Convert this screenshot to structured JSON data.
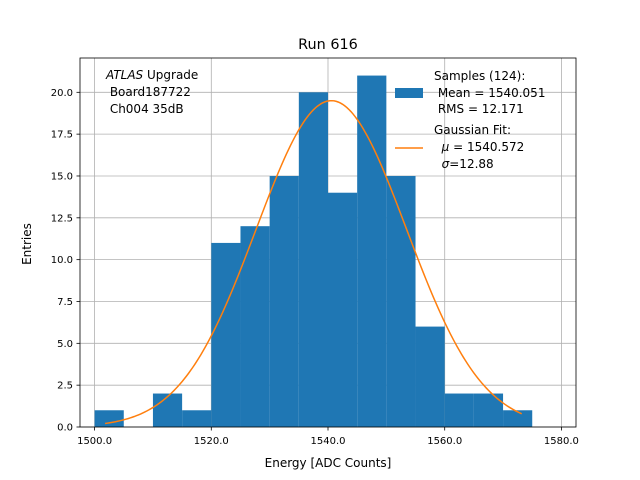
{
  "chart_data": {
    "type": "bar",
    "title": "Run 616",
    "xlabel": "Energy [ADC Counts]",
    "ylabel": "Entries",
    "xlim": [
      1497.5,
      1582.5
    ],
    "ylim": [
      0,
      22.05
    ],
    "grid": true,
    "x_ticks": [
      1500.0,
      1520.0,
      1540.0,
      1560.0,
      1580.0
    ],
    "x_tick_labels": [
      "1500.0",
      "1520.0",
      "1540.0",
      "1560.0",
      "1580.0"
    ],
    "y_ticks": [
      0.0,
      2.5,
      5.0,
      7.5,
      10.0,
      12.5,
      15.0,
      17.5,
      20.0
    ],
    "y_tick_labels": [
      "0.0",
      "2.5",
      "5.0",
      "7.5",
      "10.0",
      "12.5",
      "15.0",
      "17.5",
      "20.0"
    ],
    "bin_edges": [
      1500,
      1505,
      1510,
      1515,
      1520,
      1525,
      1530,
      1535,
      1540,
      1545,
      1550,
      1555,
      1560,
      1565,
      1570,
      1575
    ],
    "counts": [
      1,
      0,
      2,
      1,
      11,
      12,
      15,
      20,
      14,
      21,
      15,
      6,
      2,
      2,
      1
    ],
    "bar_color": "#1f77b4",
    "fit": {
      "type": "gaussian",
      "mu": 1540.572,
      "sigma": 12.88,
      "amplitude": 19.5,
      "x_range": [
        1501.8,
        1573.2
      ],
      "color": "#ff7f0e"
    },
    "annotation": {
      "italic": "ATLAS",
      "line1_rest": " Upgrade",
      "line2": " Board187722",
      "line3": " Ch004 35dB"
    },
    "legend": {
      "position": "upper right",
      "samples": {
        "line1": "Samples (124):",
        "line2": " Mean = 1540.051",
        "line3": " RMS = 12.171"
      },
      "fit": {
        "line1": "Gaussian Fit:",
        "mu_symbol": "μ",
        "mu_rest": " = 1540.572",
        "sigma_symbol": "σ",
        "sigma_rest": "=12.88"
      }
    }
  }
}
